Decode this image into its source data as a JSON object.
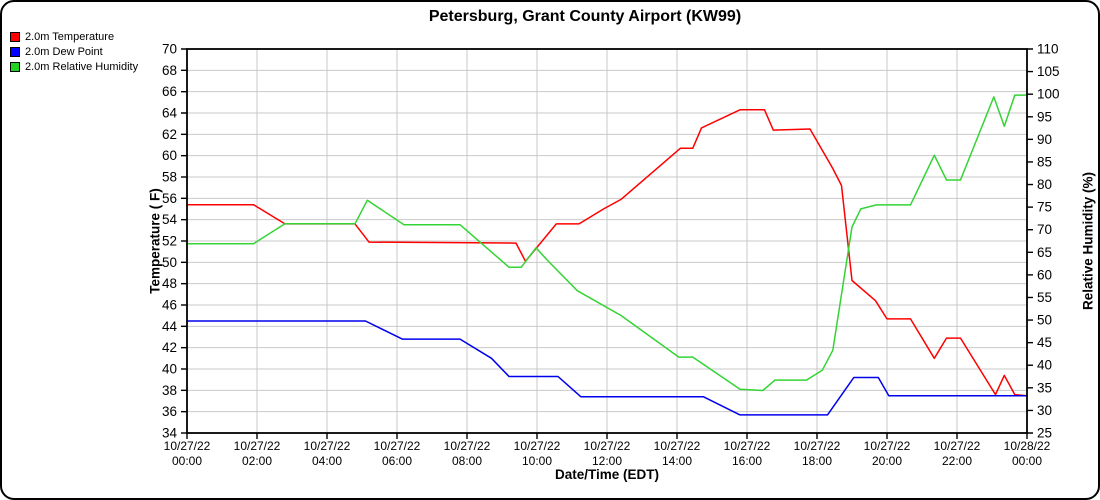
{
  "title": "Petersburg, Grant County Airport (KW99)",
  "legend": [
    {
      "label": "2.0m Temperature",
      "color": "#ff0000"
    },
    {
      "label": "2.0m Dew Point",
      "color": "#0000ff"
    },
    {
      "label": "2.0m Relative Humidity",
      "color": "#22d422"
    }
  ],
  "chart_data": {
    "type": "line",
    "title": "Petersburg, Grant County Airport (KW99)",
    "xlabel": "Date/Time (EDT)",
    "ylabel_left": "Temperature ( F)",
    "ylabel_right": "Relative Humidity (%)",
    "x_unit": "hours since 10/27/22 00:00 EDT",
    "xlim": [
      0,
      24
    ],
    "ylim_left": [
      34,
      70
    ],
    "ylim_right": [
      25,
      110
    ],
    "grid": true,
    "legend_position": "top-left",
    "y_ticks_left": [
      34,
      36,
      38,
      40,
      42,
      44,
      46,
      48,
      50,
      52,
      54,
      56,
      58,
      60,
      62,
      64,
      66,
      68,
      70
    ],
    "y_ticks_right": [
      25,
      30,
      35,
      40,
      45,
      50,
      55,
      60,
      65,
      70,
      75,
      80,
      85,
      90,
      95,
      100,
      105,
      110
    ],
    "x_ticks": [
      {
        "t": 0,
        "date": "10/27/22",
        "time": "00:00"
      },
      {
        "t": 2,
        "date": "10/27/22",
        "time": "02:00"
      },
      {
        "t": 4,
        "date": "10/27/22",
        "time": "04:00"
      },
      {
        "t": 6,
        "date": "10/27/22",
        "time": "06:00"
      },
      {
        "t": 8,
        "date": "10/27/22",
        "time": "08:00"
      },
      {
        "t": 10,
        "date": "10/27/22",
        "time": "10:00"
      },
      {
        "t": 12,
        "date": "10/27/22",
        "time": "12:00"
      },
      {
        "t": 14,
        "date": "10/27/22",
        "time": "14:00"
      },
      {
        "t": 16,
        "date": "10/27/22",
        "time": "16:00"
      },
      {
        "t": 18,
        "date": "10/27/22",
        "time": "18:00"
      },
      {
        "t": 20,
        "date": "10/27/22",
        "time": "20:00"
      },
      {
        "t": 22,
        "date": "10/27/22",
        "time": "22:00"
      },
      {
        "t": 24,
        "date": "10/28/22",
        "time": "00:00"
      }
    ],
    "series": [
      {
        "name": "2.0m Temperature",
        "axis": "left",
        "unit": "F",
        "color": "#ff0000",
        "points": [
          [
            0,
            55.4
          ],
          [
            1.9,
            55.4
          ],
          [
            2.8,
            53.6
          ],
          [
            4.8,
            53.6
          ],
          [
            5.2,
            51.9
          ],
          [
            9.4,
            51.8
          ],
          [
            9.67,
            50.1
          ],
          [
            10.55,
            53.6
          ],
          [
            11.2,
            53.6
          ],
          [
            11.9,
            55.0
          ],
          [
            12.4,
            55.9
          ],
          [
            14.1,
            60.7
          ],
          [
            14.45,
            60.7
          ],
          [
            14.7,
            62.6
          ],
          [
            15.8,
            64.3
          ],
          [
            16.5,
            64.3
          ],
          [
            16.75,
            62.4
          ],
          [
            17.8,
            62.5
          ],
          [
            18.45,
            58.8
          ],
          [
            18.7,
            57.2
          ],
          [
            19.0,
            48.3
          ],
          [
            19.67,
            46.4
          ],
          [
            20.0,
            44.7
          ],
          [
            20.67,
            44.7
          ],
          [
            21.35,
            41.0
          ],
          [
            21.7,
            42.9
          ],
          [
            22.1,
            42.9
          ],
          [
            23.1,
            37.6
          ],
          [
            23.35,
            39.4
          ],
          [
            23.65,
            37.6
          ],
          [
            24,
            37.5
          ]
        ]
      },
      {
        "name": "2.0m Dew Point",
        "axis": "left",
        "unit": "F",
        "color": "#0000ee",
        "points": [
          [
            0,
            44.5
          ],
          [
            5.1,
            44.5
          ],
          [
            6.15,
            42.8
          ],
          [
            7.8,
            42.8
          ],
          [
            8.7,
            41.0
          ],
          [
            9.2,
            39.3
          ],
          [
            10.6,
            39.3
          ],
          [
            11.25,
            37.4
          ],
          [
            14.75,
            37.4
          ],
          [
            15.8,
            35.7
          ],
          [
            18.3,
            35.7
          ],
          [
            19.05,
            39.2
          ],
          [
            19.75,
            39.2
          ],
          [
            20.05,
            37.5
          ],
          [
            24,
            37.5
          ]
        ]
      },
      {
        "name": "2.0m Relative Humidity",
        "axis": "right",
        "unit": "%",
        "color": "#33d433",
        "points": [
          [
            0,
            66.9
          ],
          [
            1.9,
            66.9
          ],
          [
            2.8,
            71.3
          ],
          [
            4.8,
            71.3
          ],
          [
            5.15,
            76.5
          ],
          [
            6.2,
            71.1
          ],
          [
            7.8,
            71.1
          ],
          [
            9.2,
            61.7
          ],
          [
            9.55,
            61.7
          ],
          [
            9.97,
            66.0
          ],
          [
            10.3,
            63.2
          ],
          [
            11.15,
            56.5
          ],
          [
            12.4,
            51.0
          ],
          [
            14.05,
            41.8
          ],
          [
            14.45,
            41.8
          ],
          [
            15.8,
            34.7
          ],
          [
            16.45,
            34.4
          ],
          [
            16.8,
            36.7
          ],
          [
            17.7,
            36.7
          ],
          [
            18.15,
            38.9
          ],
          [
            18.45,
            43.3
          ],
          [
            19.0,
            70.6
          ],
          [
            19.25,
            74.6
          ],
          [
            19.7,
            75.5
          ],
          [
            20.67,
            75.5
          ],
          [
            21.35,
            86.5
          ],
          [
            21.7,
            81.0
          ],
          [
            22.1,
            81.0
          ],
          [
            23.05,
            99.4
          ],
          [
            23.35,
            92.9
          ],
          [
            23.65,
            99.8
          ],
          [
            24,
            99.8
          ]
        ]
      }
    ]
  }
}
